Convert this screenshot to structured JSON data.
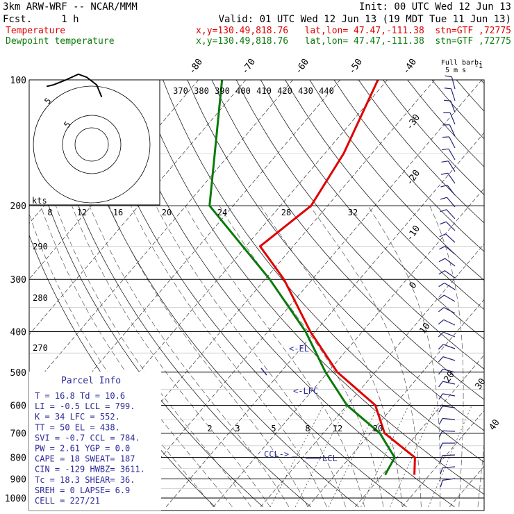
{
  "header": {
    "model": "3km ARW-WRF -- NCAR/MMM",
    "init": "Init: 00 UTC Wed 12 Jun 13",
    "fcst": "Fcst.     1 h",
    "valid": "Valid: 01 UTC Wed 12 Jun 13 (19 MDT Tue 11 Jun 13)",
    "temp_label": "Temperature",
    "temp_loc": "x,y=130.49,818.76   lat,lon= 47.47,-111.38  stn=GTF ,72775",
    "dew_label": "Dewpoint temperature",
    "dew_loc": "x,y=130.49,818.76   lat,lon= 47.47,-111.38  stn=GTF ,72775"
  },
  "colors": {
    "temperature": "#e00000",
    "dewpoint": "#0a7a0a",
    "parcel": "#2a2a9a",
    "hodograph": "#000000"
  },
  "chart_data": {
    "type": "line",
    "pressure_levels": [
      100,
      200,
      300,
      400,
      500,
      600,
      700,
      800,
      900,
      1000
    ],
    "pressure_labels": [
      "100",
      "200",
      "300",
      "400",
      "500",
      "600",
      "700",
      "800",
      "900",
      "1000"
    ],
    "isotherm_labels": [
      "-80",
      "-70",
      "-60",
      "-50",
      "-40",
      "-30",
      "-20",
      "-10",
      "0",
      "10",
      "20",
      "30",
      "40"
    ],
    "theta_labels": [
      "370",
      "380",
      "390",
      "400",
      "410",
      "420",
      "430",
      "440"
    ],
    "theta_low_labels": [
      "290",
      "280",
      "270"
    ],
    "mixing_ratio_labels": [
      "2",
      "3",
      "5",
      "8",
      "12",
      "20"
    ],
    "hodograph": {
      "units": "kts",
      "ring_labels": [
        "5",
        "5"
      ],
      "speed_labels": [
        "8",
        "12",
        "16",
        "20",
        "24",
        "28",
        "32"
      ],
      "trace": [
        [
          1.2,
          3.1
        ],
        [
          0.6,
          3.9
        ],
        [
          -0.6,
          4.4
        ],
        [
          -1.6,
          4.6
        ],
        [
          -3.2,
          4.2
        ],
        [
          -4.6,
          3.9
        ],
        [
          -5.4,
          3.8
        ]
      ]
    },
    "series": [
      {
        "name": "Temperature",
        "points": [
          {
            "p": 100,
            "t": -62
          },
          {
            "p": 150,
            "t": -56
          },
          {
            "p": 200,
            "t": -53.5
          },
          {
            "p": 250,
            "t": -57
          },
          {
            "p": 300,
            "t": -46
          },
          {
            "p": 400,
            "t": -31
          },
          {
            "p": 500,
            "t": -18
          },
          {
            "p": 600,
            "t": -4
          },
          {
            "p": 700,
            "t": 3
          },
          {
            "p": 800,
            "t": 13.8
          },
          {
            "p": 880,
            "t": 16.8
          }
        ]
      },
      {
        "name": "Dewpoint temperature",
        "points": [
          {
            "p": 100,
            "t": -95
          },
          {
            "p": 200,
            "t": -75
          },
          {
            "p": 300,
            "t": -49
          },
          {
            "p": 400,
            "t": -32
          },
          {
            "p": 500,
            "t": -20.5
          },
          {
            "p": 600,
            "t": -10
          },
          {
            "p": 700,
            "t": 2
          },
          {
            "p": 800,
            "t": 9.5
          },
          {
            "p": 880,
            "t": 10.6
          }
        ]
      }
    ],
    "parcel_annotations": {
      "el": "<-EL",
      "lfc": "<-LFC",
      "ccl": "CCL->",
      "lcl": "LCL"
    },
    "full_barb_label": "Full barb:",
    "full_barb_value": "5 m s",
    "full_barb_exp": "-1"
  },
  "parcel_info": {
    "title": "Parcel Info",
    "rows": [
      "T   =   16.8  Td =  10.6",
      "LI  =   -0.5  LCL =  799.",
      "K   =     34  LFC =  552.",
      "TT  =     50  EL  =  438.",
      "SVI =   -0.7  CCL =  784.",
      "PW  =   2.61  YGP =   0.0",
      "CAPE =    18  SWEAT=  187",
      "CIN  =  -129  HWBZ= 3611.",
      "Tc  =   18.3  SHEAR=  36.",
      "SREH =     0  LAPSE=   6.9",
      "CELL = 227/21"
    ]
  }
}
